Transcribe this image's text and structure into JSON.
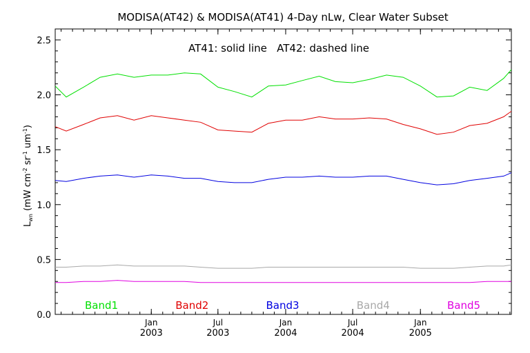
{
  "chart_data": {
    "type": "line",
    "title": "MODISA(AT42) & MODISA(AT41) 4-Day nLw, Clear Water Subset",
    "annotation": "AT41: solid line   AT42: dashed line",
    "ylabel_main": "L",
    "ylabel_sub": "wn",
    "ylabel_rest": "(mW cm",
    "ylabel_sup1": "-2",
    "ylabel_sr": " sr",
    "ylabel_sup2": "-1",
    "ylabel_um": " um",
    "ylabel_sup3": "-1",
    "ylabel_close": ")",
    "ylim": [
      0.0,
      2.6
    ],
    "yticks": [
      0.0,
      0.5,
      1.0,
      1.5,
      2.0,
      2.5
    ],
    "ytick_labels": [
      "0.0",
      "0.5",
      "1.0",
      "1.5",
      "2.0",
      "2.5"
    ],
    "xlim": [
      "2002-04-15",
      "2005-09-05"
    ],
    "xticks": [
      {
        "date": "2003-01-01",
        "line1": "Jan",
        "line2": "2003"
      },
      {
        "date": "2003-07-01",
        "line1": "Jul",
        "line2": "2003"
      },
      {
        "date": "2004-01-01",
        "line1": "Jan",
        "line2": "2004"
      },
      {
        "date": "2004-07-01",
        "line1": "Jul",
        "line2": "2004"
      },
      {
        "date": "2005-01-01",
        "line1": "Jan",
        "line2": "2005"
      }
    ],
    "x": [
      "2002-04-15",
      "2002-05-15",
      "2002-07-01",
      "2002-08-15",
      "2002-10-01",
      "2002-11-15",
      "2003-01-01",
      "2003-02-15",
      "2003-04-01",
      "2003-05-15",
      "2003-07-01",
      "2003-08-15",
      "2003-10-01",
      "2003-11-15",
      "2004-01-01",
      "2004-02-15",
      "2004-04-01",
      "2004-05-15",
      "2004-07-01",
      "2004-08-15",
      "2004-10-01",
      "2004-11-15",
      "2005-01-01",
      "2005-02-15",
      "2005-04-01",
      "2005-05-15",
      "2005-07-01",
      "2005-08-15",
      "2005-09-05"
    ],
    "series": [
      {
        "name": "Band1",
        "color": "#00e000",
        "values": [
          2.08,
          1.98,
          2.07,
          2.16,
          2.19,
          2.16,
          2.18,
          2.18,
          2.2,
          2.19,
          2.07,
          2.03,
          1.98,
          2.08,
          2.09,
          2.13,
          2.17,
          2.12,
          2.11,
          2.14,
          2.18,
          2.16,
          2.08,
          1.98,
          1.99,
          2.07,
          2.04,
          2.15,
          2.23
        ]
      },
      {
        "name": "Band2",
        "color": "#e00000",
        "values": [
          1.71,
          1.67,
          1.73,
          1.79,
          1.81,
          1.77,
          1.81,
          1.79,
          1.77,
          1.75,
          1.68,
          1.67,
          1.66,
          1.74,
          1.77,
          1.77,
          1.8,
          1.78,
          1.78,
          1.79,
          1.78,
          1.73,
          1.69,
          1.64,
          1.66,
          1.72,
          1.74,
          1.8,
          1.85
        ]
      },
      {
        "name": "Band3",
        "color": "#0000e0",
        "values": [
          1.22,
          1.21,
          1.24,
          1.26,
          1.27,
          1.25,
          1.27,
          1.26,
          1.24,
          1.24,
          1.21,
          1.2,
          1.2,
          1.23,
          1.25,
          1.25,
          1.26,
          1.25,
          1.25,
          1.26,
          1.26,
          1.23,
          1.2,
          1.18,
          1.19,
          1.22,
          1.24,
          1.26,
          1.29
        ]
      },
      {
        "name": "Band4",
        "color": "#a8a8a8",
        "values": [
          0.43,
          0.43,
          0.44,
          0.44,
          0.45,
          0.44,
          0.44,
          0.44,
          0.44,
          0.43,
          0.42,
          0.42,
          0.42,
          0.43,
          0.43,
          0.43,
          0.43,
          0.43,
          0.43,
          0.43,
          0.43,
          0.43,
          0.42,
          0.42,
          0.42,
          0.43,
          0.44,
          0.44,
          0.45
        ]
      },
      {
        "name": "Band5",
        "color": "#e000e0",
        "values": [
          0.29,
          0.29,
          0.3,
          0.3,
          0.31,
          0.3,
          0.3,
          0.3,
          0.3,
          0.29,
          0.29,
          0.29,
          0.29,
          0.29,
          0.29,
          0.29,
          0.29,
          0.29,
          0.29,
          0.29,
          0.29,
          0.29,
          0.29,
          0.29,
          0.29,
          0.29,
          0.3,
          0.3,
          0.3
        ]
      }
    ],
    "legend_position": "bottom"
  }
}
